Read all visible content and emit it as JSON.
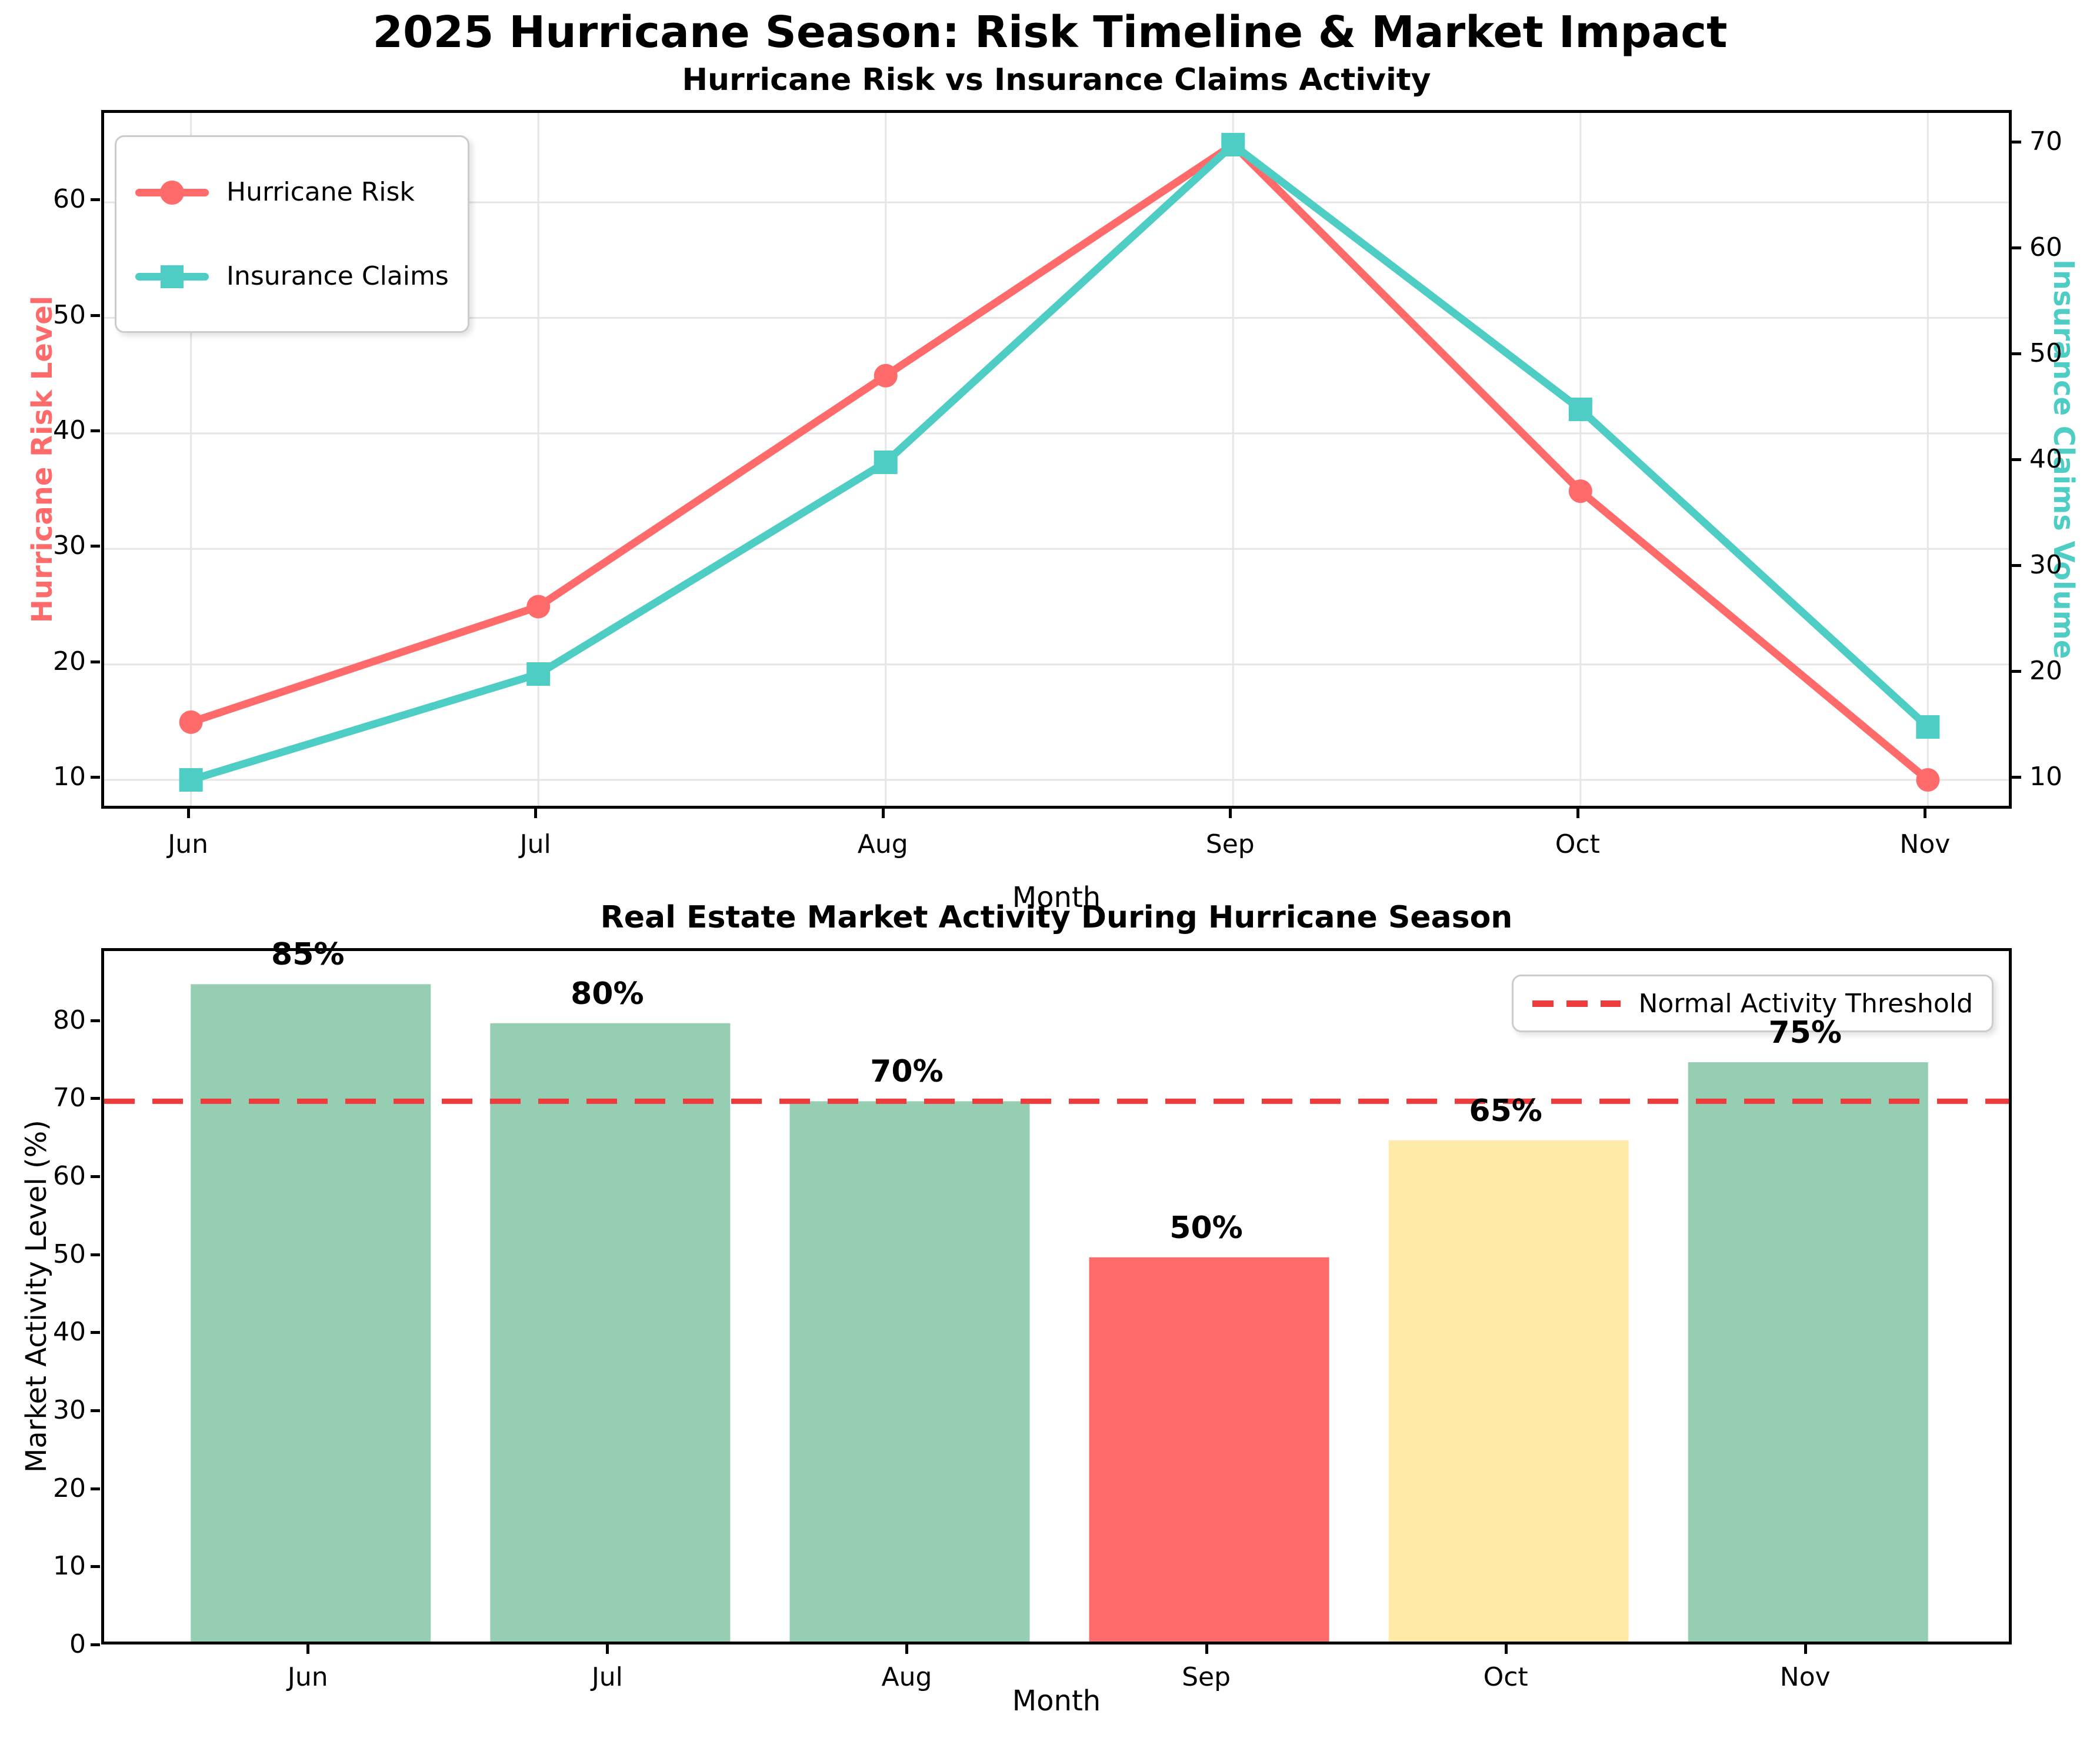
{
  "figure": {
    "suptitle": "2025 Hurricane Season: Risk Timeline & Market Impact"
  },
  "colors": {
    "risk": "#FF6B6B",
    "claims": "#4ECDC4",
    "green_bar": "#96CEB4",
    "yellow_bar": "#FFEAA7",
    "red_bar": "#FF6B6B",
    "threshold": "#EE3B3B",
    "grid": "#E6E6E6",
    "spine": "#000000"
  },
  "chart_data": [
    {
      "type": "line",
      "title": "Hurricane Risk vs Insurance Claims Activity",
      "xlabel": "Month",
      "categories": [
        "Jun",
        "Jul",
        "Aug",
        "Sep",
        "Oct",
        "Nov"
      ],
      "series": [
        {
          "name": "Hurricane Risk",
          "axis": "left",
          "color": "#FF6B6B",
          "marker": "circle",
          "values": [
            15,
            25,
            45,
            65,
            35,
            10
          ]
        },
        {
          "name": "Insurance Claims",
          "axis": "right",
          "color": "#4ECDC4",
          "marker": "square",
          "values": [
            10,
            20,
            40,
            70,
            45,
            15
          ]
        }
      ],
      "left_axis": {
        "label": "Hurricane Risk Level",
        "ticks": [
          10,
          20,
          30,
          40,
          50,
          60
        ],
        "range": [
          7.25,
          67.75
        ],
        "color": "#FF6B6B"
      },
      "right_axis": {
        "label": "Insurance Claims Volume",
        "ticks": [
          10,
          20,
          30,
          40,
          50,
          60,
          70
        ],
        "range": [
          7,
          73
        ],
        "color": "#4ECDC4"
      },
      "grid": true,
      "legend_position": "upper left"
    },
    {
      "type": "bar",
      "title": "Real Estate Market Activity During Hurricane Season",
      "xlabel": "Month",
      "ylabel": "Market Activity Level (%)",
      "categories": [
        "Jun",
        "Jul",
        "Aug",
        "Sep",
        "Oct",
        "Nov"
      ],
      "values": [
        85,
        80,
        70,
        50,
        65,
        75
      ],
      "value_labels": [
        "85%",
        "80%",
        "70%",
        "50%",
        "65%",
        "75%"
      ],
      "bar_colors": [
        "#96CEB4",
        "#96CEB4",
        "#96CEB4",
        "#FF6B6B",
        "#FFEAA7",
        "#96CEB4"
      ],
      "yticks": [
        0,
        10,
        20,
        30,
        40,
        50,
        60,
        70,
        80
      ],
      "ylim": [
        0,
        89.25
      ],
      "threshold": {
        "value": 70,
        "label": "Normal Activity Threshold",
        "color": "#EE3B3B"
      },
      "grid": false,
      "legend_position": "upper right"
    }
  ]
}
